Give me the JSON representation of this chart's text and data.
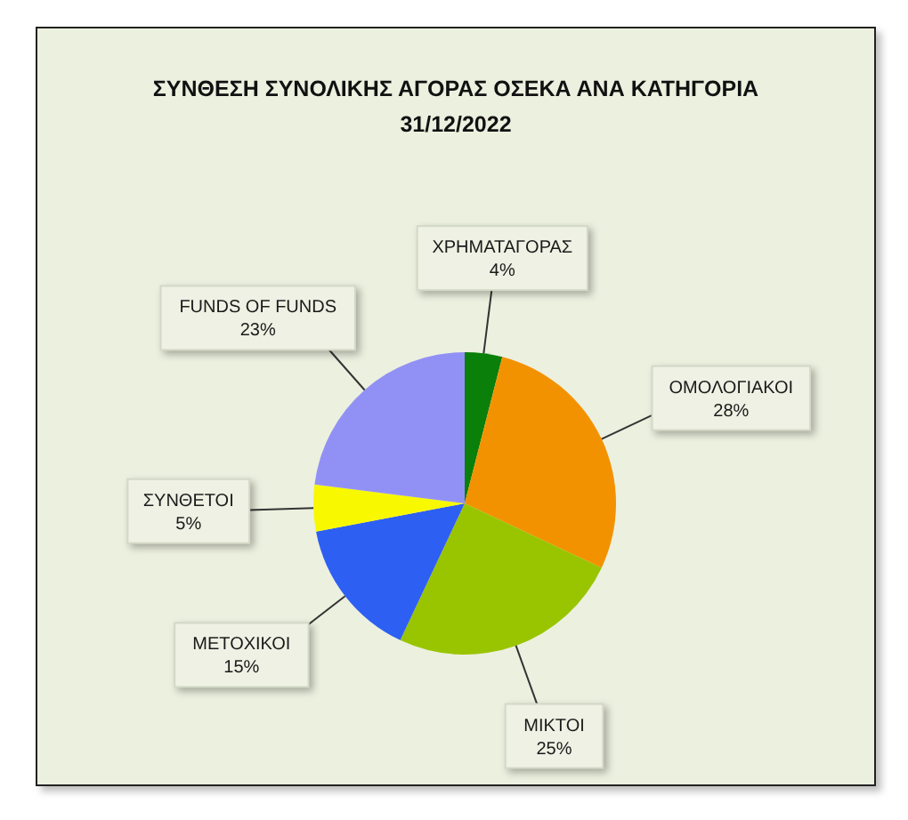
{
  "chart_data": {
    "type": "pie",
    "title": "ΣΥΝΘΕΣΗ ΣΥΝΟΛΙΚΗΣ ΑΓΟΡΑΣ ΟΣΕΚΑ ΑΝΑ ΚΑΤΗΓΟΡΙΑ",
    "subtitle": "31/12/2022",
    "categories": [
      "ΧΡΗΜΑΤΑΓΟΡΑΣ",
      "ΟΜΟΛΟΓΙΑΚΟΙ",
      "ΜΙΚΤΟΙ",
      "ΜΕΤΟΧΙΚΟΙ",
      "ΣΥΝΘΕΤΟΙ",
      "FUNDS OF FUNDS"
    ],
    "values": [
      4,
      28,
      25,
      15,
      5,
      23
    ],
    "colors": [
      "#0a7f0a",
      "#f39200",
      "#99c400",
      "#2d5ff2",
      "#f8f800",
      "#9191f5"
    ],
    "value_labels": [
      "4%",
      "28%",
      "25%",
      "15%",
      "5%",
      "23%"
    ]
  }
}
